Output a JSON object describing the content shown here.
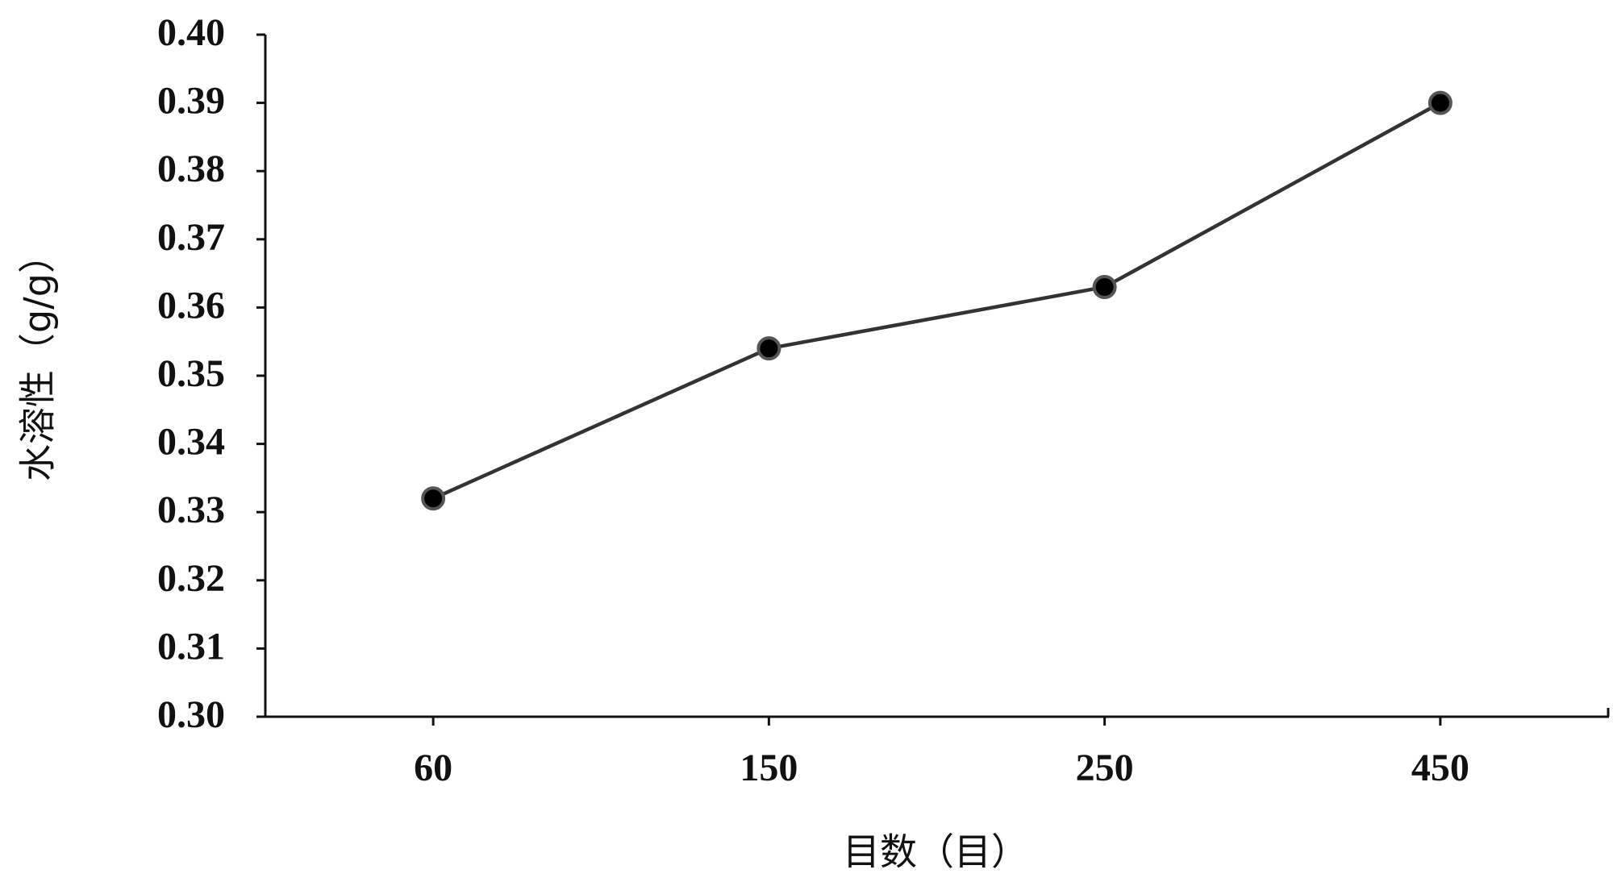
{
  "chart_data": {
    "type": "line",
    "x_label": "目数（目）",
    "y_label": "水溶性（g/g）",
    "categories": [
      "60",
      "150",
      "250",
      "450"
    ],
    "series": [
      {
        "color": "#333333",
        "values": [
          0.332,
          0.354,
          0.363,
          0.39
        ]
      }
    ],
    "ylim": [
      0.3,
      0.4
    ],
    "yticks": [
      {
        "value": 0.3,
        "label": "0.30"
      },
      0.31,
      0.32,
      0.33,
      0.34,
      0.35,
      0.36,
      0.37,
      0.38,
      0.39,
      {
        "value": 0.4,
        "label": "0.40"
      }
    ]
  }
}
